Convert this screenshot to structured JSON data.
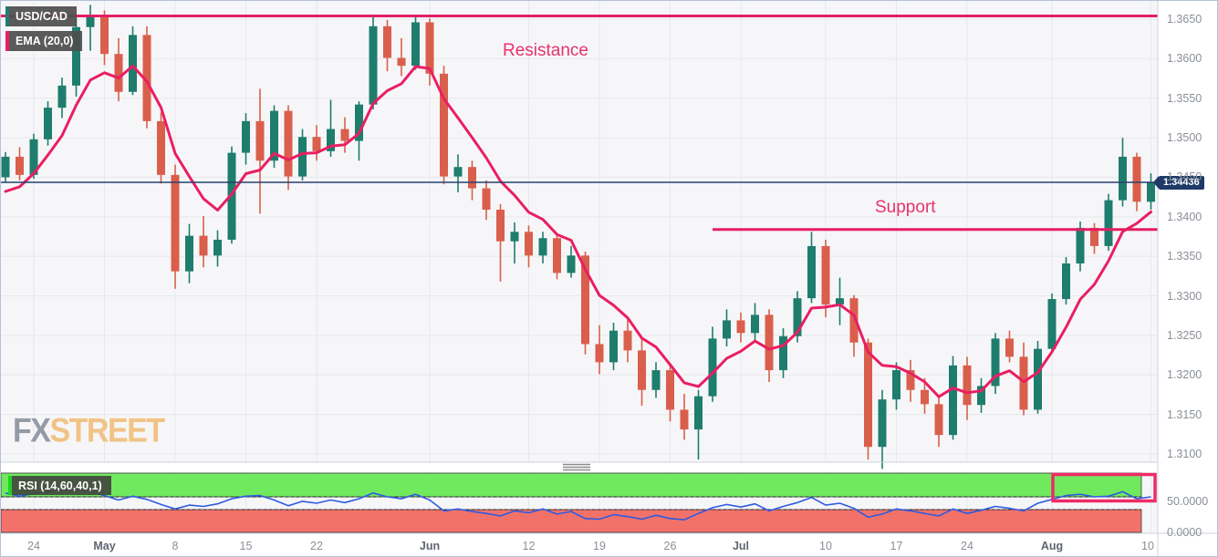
{
  "legend": {
    "pair": "USD/CAD",
    "ema": "EMA (20,0)",
    "rsi": "RSI (14,60,40,1)"
  },
  "annotations": {
    "resistance_label": "Resistance",
    "support_label": "Support"
  },
  "price_tag": "1.34436",
  "watermark": {
    "fx": "FX",
    "street": "STREET"
  },
  "colors": {
    "candle_up": "#1e7d6d",
    "candle_down": "#d95f4c",
    "ema_line": "#ea1e63",
    "level_line": "#e31e63",
    "annot_text": "#e8316e",
    "price_line": "#26406e",
    "price_tag_bg": "#1e3a66",
    "rsi_line": "#2f5be0",
    "rsi_zone_green": "#70e95f",
    "rsi_zone_red": "#f2726a",
    "highlight_box": "#ee2b66",
    "grid": "#e7e8ec",
    "axis_text": "#8a8f98",
    "watermark_fx": "#959ba6",
    "watermark_street": "#f1c386"
  },
  "chart_data": {
    "type": "candlestick",
    "title": "USD/CAD with EMA(20,0) overlay and RSI(14,60,40,1) sub-panel",
    "y_axis": {
      "ticks": [
        "1.3650",
        "1.3600",
        "1.3550",
        "1.3500",
        "1.3450",
        "1.3400",
        "1.3350",
        "1.3300",
        "1.3250",
        "1.3200",
        "1.3150",
        "1.3100"
      ],
      "max": 1.365,
      "min": 1.31
    },
    "time_ticks": [
      {
        "label": "24",
        "index": 2,
        "bold": false
      },
      {
        "label": "May",
        "index": 7,
        "bold": true
      },
      {
        "label": "8",
        "index": 12,
        "bold": false
      },
      {
        "label": "15",
        "index": 17,
        "bold": false
      },
      {
        "label": "22",
        "index": 22,
        "bold": false
      },
      {
        "label": "Jun",
        "index": 30,
        "bold": true
      },
      {
        "label": "12",
        "index": 37,
        "bold": false
      },
      {
        "label": "19",
        "index": 42,
        "bold": false
      },
      {
        "label": "26",
        "index": 47,
        "bold": false
      },
      {
        "label": "Jul",
        "index": 52,
        "bold": true
      },
      {
        "label": "10",
        "index": 58,
        "bold": false
      },
      {
        "label": "17",
        "index": 63,
        "bold": false
      },
      {
        "label": "24",
        "index": 68,
        "bold": false
      },
      {
        "label": "Aug",
        "index": 74,
        "bold": true
      },
      {
        "label": "10",
        "index": 81,
        "bold": false
      }
    ],
    "candles": [
      [
        1.345,
        1.3482,
        1.3443,
        1.3476
      ],
      [
        1.3476,
        1.3488,
        1.3446,
        1.3453
      ],
      [
        1.3453,
        1.3505,
        1.3448,
        1.3498
      ],
      [
        1.3498,
        1.3546,
        1.349,
        1.3538
      ],
      [
        1.3538,
        1.3576,
        1.3525,
        1.3566
      ],
      [
        1.3566,
        1.3652,
        1.3552,
        1.364
      ],
      [
        1.364,
        1.3668,
        1.361,
        1.3655
      ],
      [
        1.3655,
        1.3661,
        1.3592,
        1.3606
      ],
      [
        1.3606,
        1.3626,
        1.3546,
        1.3558
      ],
      [
        1.3558,
        1.3641,
        1.3554,
        1.363
      ],
      [
        1.363,
        1.3641,
        1.3512,
        1.3521
      ],
      [
        1.3521,
        1.3532,
        1.3442,
        1.3453
      ],
      [
        1.3453,
        1.3466,
        1.3309,
        1.3331
      ],
      [
        1.3331,
        1.3391,
        1.3316,
        1.3376
      ],
      [
        1.3376,
        1.3401,
        1.3336,
        1.3351
      ],
      [
        1.3351,
        1.3383,
        1.3337,
        1.3371
      ],
      [
        1.3371,
        1.3489,
        1.3366,
        1.3481
      ],
      [
        1.3481,
        1.3531,
        1.3466,
        1.3521
      ],
      [
        1.3521,
        1.3562,
        1.3404,
        1.3471
      ],
      [
        1.3471,
        1.3541,
        1.3462,
        1.3534
      ],
      [
        1.3534,
        1.3541,
        1.3434,
        1.3451
      ],
      [
        1.3451,
        1.3511,
        1.3446,
        1.3501
      ],
      [
        1.3501,
        1.3516,
        1.3471,
        1.3483
      ],
      [
        1.3483,
        1.3548,
        1.3476,
        1.3511
      ],
      [
        1.3511,
        1.3526,
        1.3481,
        1.3496
      ],
      [
        1.3496,
        1.3546,
        1.3471,
        1.3542
      ],
      [
        1.3542,
        1.3656,
        1.3536,
        1.3641
      ],
      [
        1.3641,
        1.3649,
        1.3584,
        1.3601
      ],
      [
        1.3601,
        1.3626,
        1.3578,
        1.3591
      ],
      [
        1.3591,
        1.3654,
        1.3586,
        1.3646
      ],
      [
        1.3646,
        1.3651,
        1.3566,
        1.3581
      ],
      [
        1.3581,
        1.3591,
        1.3441,
        1.3451
      ],
      [
        1.3451,
        1.3479,
        1.3431,
        1.3463
      ],
      [
        1.3463,
        1.3471,
        1.3421,
        1.3436
      ],
      [
        1.3436,
        1.3446,
        1.3396,
        1.3409
      ],
      [
        1.3409,
        1.3416,
        1.3318,
        1.3369
      ],
      [
        1.3369,
        1.3393,
        1.3341,
        1.3381
      ],
      [
        1.3381,
        1.3389,
        1.3336,
        1.3351
      ],
      [
        1.3351,
        1.3381,
        1.3341,
        1.3373
      ],
      [
        1.3373,
        1.3377,
        1.3321,
        1.3329
      ],
      [
        1.3329,
        1.3363,
        1.3323,
        1.3351
      ],
      [
        1.3351,
        1.3356,
        1.3226,
        1.3239
      ],
      [
        1.3239,
        1.3263,
        1.3201,
        1.3216
      ],
      [
        1.3216,
        1.3266,
        1.3206,
        1.3256
      ],
      [
        1.3256,
        1.3271,
        1.3216,
        1.3231
      ],
      [
        1.3231,
        1.3246,
        1.3161,
        1.3181
      ],
      [
        1.3181,
        1.3216,
        1.3171,
        1.3206
      ],
      [
        1.3206,
        1.3211,
        1.3141,
        1.3156
      ],
      [
        1.3156,
        1.3176,
        1.3118,
        1.3131
      ],
      [
        1.3131,
        1.3181,
        1.3093,
        1.3173
      ],
      [
        1.3173,
        1.3261,
        1.3166,
        1.3246
      ],
      [
        1.3246,
        1.3283,
        1.3236,
        1.3269
      ],
      [
        1.3269,
        1.3279,
        1.3241,
        1.3253
      ],
      [
        1.3253,
        1.3291,
        1.3243,
        1.3276
      ],
      [
        1.3276,
        1.3283,
        1.3191,
        1.3206
      ],
      [
        1.3206,
        1.3259,
        1.3196,
        1.3249
      ],
      [
        1.3249,
        1.3306,
        1.3241,
        1.3297
      ],
      [
        1.3297,
        1.3381,
        1.3291,
        1.3363
      ],
      [
        1.3363,
        1.3371,
        1.3273,
        1.3289
      ],
      [
        1.3289,
        1.3323,
        1.3263,
        1.3297
      ],
      [
        1.3297,
        1.3301,
        1.3223,
        1.3241
      ],
      [
        1.3241,
        1.3246,
        1.3093,
        1.3109
      ],
      [
        1.3109,
        1.3181,
        1.3081,
        1.3169
      ],
      [
        1.3169,
        1.3216,
        1.3156,
        1.3206
      ],
      [
        1.3206,
        1.3219,
        1.3166,
        1.3181
      ],
      [
        1.3181,
        1.3196,
        1.3151,
        1.3163
      ],
      [
        1.3163,
        1.3173,
        1.3109,
        1.3124
      ],
      [
        1.3124,
        1.3224,
        1.3118,
        1.3212
      ],
      [
        1.3212,
        1.3223,
        1.3143,
        1.3162
      ],
      [
        1.3162,
        1.3196,
        1.3152,
        1.3186
      ],
      [
        1.3186,
        1.3253,
        1.3176,
        1.3246
      ],
      [
        1.3246,
        1.3256,
        1.3216,
        1.3223
      ],
      [
        1.3223,
        1.3241,
        1.3149,
        1.3156
      ],
      [
        1.3156,
        1.3243,
        1.3151,
        1.3233
      ],
      [
        1.3233,
        1.3303,
        1.3229,
        1.3296
      ],
      [
        1.3296,
        1.3349,
        1.3289,
        1.3341
      ],
      [
        1.3341,
        1.3394,
        1.3331,
        1.3386
      ],
      [
        1.3386,
        1.3392,
        1.3353,
        1.3363
      ],
      [
        1.3363,
        1.3429,
        1.3357,
        1.3421
      ],
      [
        1.3421,
        1.35,
        1.3413,
        1.3476
      ],
      [
        1.3476,
        1.3481,
        1.3407,
        1.3419
      ],
      [
        1.3419,
        1.3455,
        1.3409,
        1.34436
      ]
    ],
    "ema": {
      "period": 20,
      "offset": 0
    },
    "levels": {
      "resistance": 1.3654,
      "support": 1.3384,
      "support_start_index": 50,
      "last_price": 1.34436
    },
    "rsi": {
      "params": "14,60,40,1",
      "upper_band": 60,
      "lower_band": 40,
      "axis_ticks": [
        "50.0000",
        "0.0000"
      ],
      "values": [
        66,
        61,
        65,
        68,
        70,
        72,
        68,
        62,
        55,
        61,
        56,
        48,
        41,
        47,
        45,
        49,
        57,
        61,
        62,
        55,
        46,
        53,
        50,
        55,
        51,
        57,
        66,
        60,
        57,
        64,
        55,
        38,
        41,
        37,
        34,
        30,
        38,
        35,
        41,
        33,
        37,
        26,
        25,
        32,
        29,
        25,
        31,
        26,
        24,
        34,
        43,
        48,
        44,
        49,
        38,
        45,
        51,
        59,
        47,
        50,
        42,
        28,
        33,
        41,
        38,
        34,
        30,
        41,
        34,
        39,
        45,
        42,
        38,
        50,
        56,
        62,
        64,
        60,
        61,
        68,
        57,
        60
      ],
      "highlight_start_index": 74
    }
  }
}
